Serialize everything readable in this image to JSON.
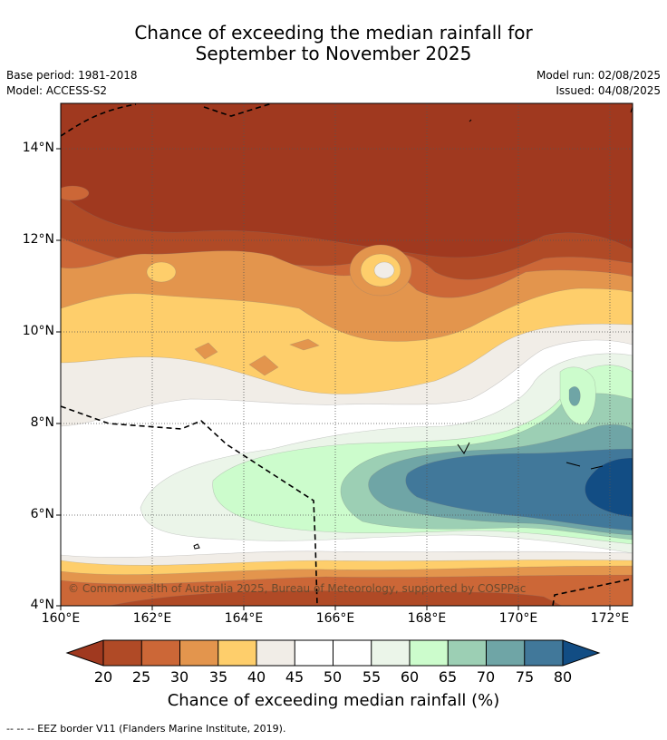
{
  "title_line1": "Chance of exceeding the median rainfall for",
  "title_line2": "September to November 2025",
  "meta": {
    "base_period": "Base period: 1981-2018",
    "model": "Model: ACCESS-S2",
    "model_run": "Model run: 02/08/2025",
    "issued": "Issued: 04/08/2025"
  },
  "map": {
    "y_ticks": [
      "14°N",
      "12°N",
      "10°N",
      "8°N",
      "6°N",
      "4°N"
    ],
    "x_ticks": [
      "160°E",
      "162°E",
      "164°E",
      "166°E",
      "168°E",
      "170°E",
      "172°E"
    ],
    "copyright": "© Commonwealth of Australia 2025, Bureau of Meteorology, supported by COSPPac"
  },
  "colorbar": {
    "ticks": [
      "20",
      "25",
      "30",
      "35",
      "40",
      "45",
      "50",
      "55",
      "60",
      "65",
      "70",
      "75",
      "80"
    ],
    "colors": {
      "below20": "#a0391f",
      "c20_25": "#b04a26",
      "c25_30": "#cc6737",
      "c30_35": "#e3954d",
      "c35_40": "#fece6b",
      "c40_45": "#f1ede7",
      "c45_50": "#ffffff",
      "c50_55": "#ffffff",
      "c55_60": "#ebf5e9",
      "c60_65": "#ccfccc",
      "c65_70": "#9ccfb4",
      "c70_75": "#6fa5a6",
      "c75_80": "#41789a",
      "above80": "#124d84"
    },
    "label": "Chance of exceeding median rainfall (%)"
  },
  "footnote": "--  --  -- EEZ border V11 (Flanders Marine Institute, 2019)."
}
